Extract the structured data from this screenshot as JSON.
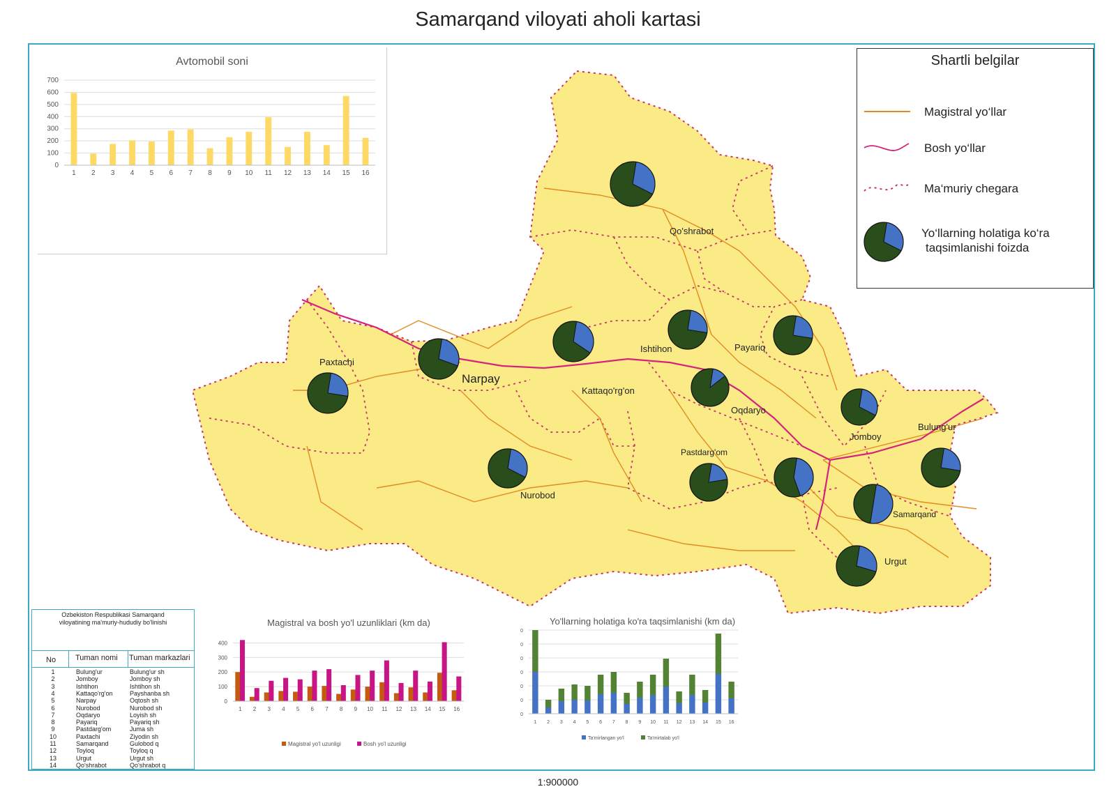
{
  "title": "Samarqand viloyati aholi kartasi",
  "scale": "1:900000",
  "colors": {
    "land": "#fbeb87",
    "road_main": "#e38a22",
    "road_primary": "#d4237a",
    "border": "#c8336d",
    "pie_green": "#2a4e1b",
    "pie_blue": "#4472c4",
    "frame": "#3aa9c6"
  },
  "legend": {
    "title": "Shartli belgilar",
    "items": [
      {
        "icon": "orange-line-icon",
        "label": "Magistral yo‘llar"
      },
      {
        "icon": "magenta-curve-icon",
        "label": "Bosh yo‘llar"
      },
      {
        "icon": "dotted-border-icon",
        "label": "Ma‘muriy chegara"
      },
      {
        "icon": "pie-icon",
        "label": "Yo‘llarning holatiga ko‘ra taqsimlanishi foizda",
        "label_line1": "Yo‘llarning holatiga ko‘ra",
        "label_line2": "taqsimlanishi foizda"
      }
    ]
  },
  "map_labels": [
    "Qo'shrabot",
    "Paxtachi",
    "Narpay",
    "Ishtihon",
    "Payariq",
    "Kattaqo'rg'on",
    "Oqdaryo",
    "Jomboy",
    "Bulung'ur",
    "Pastdarg'om",
    "Nurobod",
    "Samarqand",
    "Urgut"
  ],
  "pies": [
    {
      "district": "Qo'shrabot",
      "blue_fraction": 0.3
    },
    {
      "district": "Narpay",
      "blue_fraction": 0.28
    },
    {
      "district": "Paxtachi",
      "blue_fraction": 0.25
    },
    {
      "district": "Kattaqo'rg'on",
      "blue_fraction": 0.32
    },
    {
      "district": "Ishtihon",
      "blue_fraction": 0.25
    },
    {
      "district": "Payariq",
      "blue_fraction": 0.25
    },
    {
      "district": "Oqdaryo",
      "blue_fraction": 0.12
    },
    {
      "district": "Jomboy",
      "blue_fraction": 0.3
    },
    {
      "district": "Bulung'ur",
      "blue_fraction": 0.25
    },
    {
      "district": "Nurobod",
      "blue_fraction": 0.3
    },
    {
      "district": "Pastdarg'om",
      "blue_fraction": 0.2
    },
    {
      "district": "Toyloq",
      "blue_fraction": 0.42
    },
    {
      "district": "Samarqand",
      "blue_fraction": 0.5
    },
    {
      "district": "Urgut",
      "blue_fraction": 0.27
    }
  ],
  "table": {
    "caption_line1": "Ozbekiston Respublikasi Samarqand",
    "caption_line2": "viloyatining ma'muriy-hududiy bo'linishi",
    "headers": [
      "No",
      "Tuman nomi",
      "Tuman markazlari"
    ],
    "rows": [
      [
        "1",
        "Bulung'ur",
        "Bulung'ur sh"
      ],
      [
        "2",
        "Jomboy",
        "Jomboy sh"
      ],
      [
        "3",
        "Ishtihon",
        "Ishtihon sh"
      ],
      [
        "4",
        "Kattaqo'rg'on",
        "Payshanba sh"
      ],
      [
        "5",
        "Narpay",
        "Oqtosh sh"
      ],
      [
        "6",
        "Nurobod",
        "Nurobod sh"
      ],
      [
        "7",
        "Oqdaryo",
        "Loyish sh"
      ],
      [
        "8",
        "Payariq",
        "Payariq sh"
      ],
      [
        "9",
        "Pastdarg'om",
        "Juma sh"
      ],
      [
        "10",
        "Paxtachi",
        "Ziyodin sh"
      ],
      [
        "11",
        "Samarqand",
        "Gulobod q"
      ],
      [
        "12",
        "Toyloq",
        "Toyloq q"
      ],
      [
        "13",
        "Urgut",
        "Urgut sh"
      ],
      [
        "14",
        "Qo'shrabot",
        "Qo'shrabot q"
      ]
    ]
  },
  "chart_data": [
    {
      "type": "bar",
      "title": "Avtomobil soni",
      "categories": [
        "1",
        "2",
        "3",
        "4",
        "5",
        "6",
        "7",
        "8",
        "9",
        "10",
        "11",
        "12",
        "13",
        "14",
        "15",
        "16"
      ],
      "values": [
        595,
        95,
        175,
        205,
        195,
        285,
        295,
        140,
        230,
        275,
        395,
        150,
        275,
        165,
        570,
        225
      ],
      "ylim": [
        0,
        700
      ],
      "yticks": [
        "0",
        "100",
        "200",
        "300",
        "400",
        "500",
        "600",
        "700"
      ],
      "color": "#ffd966"
    },
    {
      "type": "bar",
      "title": "Magistral va bosh yo'l uzunliklari (km da)",
      "categories": [
        "1",
        "2",
        "3",
        "4",
        "5",
        "6",
        "7",
        "8",
        "9",
        "10",
        "11",
        "12",
        "13",
        "14",
        "15",
        "16"
      ],
      "series": [
        {
          "name": "Magistral yo'l uzunligi",
          "color": "#c55a11",
          "values": [
            200,
            30,
            60,
            70,
            65,
            100,
            105,
            50,
            80,
            100,
            130,
            55,
            95,
            60,
            195,
            75
          ]
        },
        {
          "name": "Bosh yo'l uzunligi",
          "color": "#c71585",
          "values": [
            420,
            90,
            140,
            160,
            150,
            210,
            220,
            110,
            180,
            210,
            280,
            125,
            210,
            135,
            405,
            170
          ]
        }
      ],
      "ylim": [
        0,
        450
      ],
      "yticks": [
        "0",
        "100",
        "200",
        "300",
        "400"
      ]
    },
    {
      "type": "bar",
      "stacked": true,
      "title": "Yo'llarning holatiga ko'ra taqsimlanishi (km da)",
      "categories": [
        "1",
        "2",
        "3",
        "4",
        "5",
        "6",
        "7",
        "8",
        "9",
        "10",
        "11",
        "12",
        "13",
        "14",
        "15",
        "16"
      ],
      "series": [
        {
          "name": "Ta'mirlangan yo'l",
          "color": "#4472c4",
          "values": [
            300,
            45,
            90,
            100,
            95,
            140,
            150,
            70,
            115,
            135,
            195,
            75,
            135,
            80,
            285,
            110
          ]
        },
        {
          "name": "Ta'mirtalab yo'l",
          "color": "#548235",
          "values": [
            300,
            55,
            90,
            110,
            105,
            140,
            150,
            80,
            115,
            145,
            200,
            85,
            145,
            90,
            290,
            120
          ]
        }
      ],
      "ylim": [
        0,
        620
      ],
      "yticks": [
        "0",
        "100",
        "200",
        "300",
        "400",
        "500",
        "600"
      ]
    }
  ]
}
